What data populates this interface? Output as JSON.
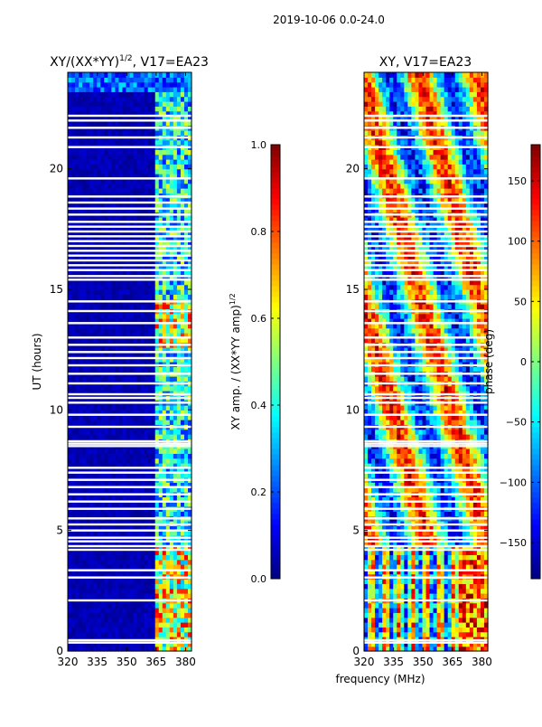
{
  "suptitle": "2019-10-06 0.0-24.0",
  "xlabel": "frequency (MHz)",
  "colors": {
    "jet": [
      "#00007f",
      "#0000ff",
      "#007fff",
      "#00ffff",
      "#7fff7f",
      "#ffff00",
      "#ff7f00",
      "#ff0000",
      "#7f0000"
    ],
    "gap": "#ffffff",
    "frame": "#000000"
  },
  "chart_data": [
    {
      "type": "heatmap",
      "name": "left-panel",
      "title_main": "XY/(XX*YY)",
      "title_exp": "1/2",
      "title_suffix": ", V17=EA23",
      "xlabel": "frequency (MHz)",
      "ylabel": "UT (hours)",
      "xlim": [
        320,
        383
      ],
      "ylim": [
        0,
        24
      ],
      "xticks": [
        320,
        335,
        350,
        365,
        380
      ],
      "xtick_labels": [
        "320",
        "335",
        "350",
        "365",
        "380"
      ],
      "yticks": [
        0,
        5,
        10,
        15,
        20
      ],
      "ytick_labels": [
        "0",
        "5",
        "10",
        "15",
        "20"
      ],
      "colorbar": {
        "label_main": "XY amp. / (XX*YY amp)",
        "label_exp": "1/2",
        "range": [
          0.0,
          1.0
        ],
        "ticks": [
          0.0,
          0.2,
          0.4,
          0.6,
          0.8,
          1.0
        ],
        "tick_labels": [
          "0.0",
          "0.2",
          "0.4",
          "0.6",
          "0.8",
          "1.0"
        ]
      }
    },
    {
      "type": "heatmap",
      "name": "right-panel",
      "title_main": "XY, V17=EA23",
      "xlabel": "frequency (MHz)",
      "ylabel": "",
      "xlim": [
        320,
        383
      ],
      "ylim": [
        0,
        24
      ],
      "xticks": [
        320,
        335,
        350,
        365,
        380
      ],
      "xtick_labels": [
        "320",
        "335",
        "350",
        "365",
        "380"
      ],
      "yticks": [
        0,
        5,
        10,
        15,
        20
      ],
      "ytick_labels": [
        "0",
        "5",
        "10",
        "15",
        "20"
      ],
      "colorbar": {
        "label_main": "phase (deg)",
        "range": [
          -180,
          180
        ],
        "ticks": [
          -150,
          -100,
          -50,
          0,
          50,
          100,
          150
        ],
        "tick_labels": [
          "−150",
          "−100",
          "−50",
          "0",
          "50",
          "100",
          "150"
        ]
      }
    }
  ],
  "flagged_gaps_ut": [
    0.35,
    0.45,
    2.1,
    3.05,
    3.35,
    4.2,
    4.35,
    4.55,
    4.7,
    5.0,
    5.25,
    5.5,
    5.9,
    6.2,
    6.5,
    6.8,
    7.1,
    7.4,
    7.6,
    8.5,
    8.6,
    8.7,
    9.3,
    9.8,
    10.3,
    10.5,
    10.65,
    11.1,
    11.5,
    11.85,
    12.15,
    12.4,
    12.7,
    13.0,
    13.6,
    14.1,
    14.5,
    15.4,
    15.55,
    15.8,
    16.0,
    16.2,
    16.4,
    16.6,
    16.8,
    17.0,
    17.2,
    17.4,
    17.6,
    17.8,
    18.1,
    18.35,
    18.6,
    18.85,
    19.6,
    20.9,
    21.3,
    21.7,
    22.0,
    22.2
  ]
}
